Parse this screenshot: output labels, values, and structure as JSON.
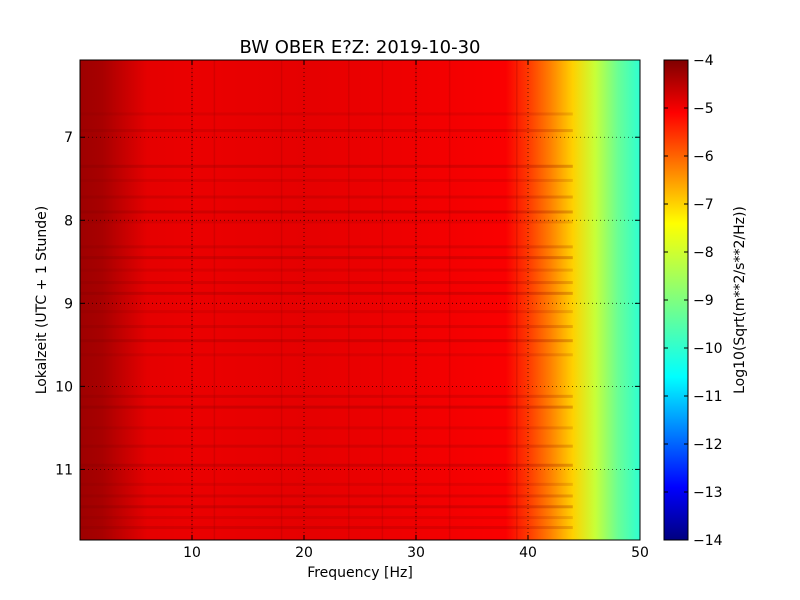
{
  "chart_data": {
    "type": "heatmap",
    "title": "BW OBER E?Z: 2019-10-30",
    "xlabel": "Frequency [Hz]",
    "ylabel": "Lokalzeit (UTC + 1 Stunde)",
    "xlim": [
      0,
      50
    ],
    "ylim": [
      11.85,
      6.07
    ],
    "x_ticks": [
      10,
      20,
      30,
      40,
      50
    ],
    "y_ticks": [
      7,
      8,
      9,
      10,
      11
    ],
    "grid": true,
    "colorbar": {
      "label": "Log10(Sqrt(m**2/s**2/Hz))",
      "range": [
        -14,
        -4
      ],
      "ticks": [
        -4,
        -5,
        -6,
        -7,
        -8,
        -9,
        -10,
        -11,
        -12,
        -13,
        -14
      ],
      "colormap": [
        "#00007f",
        "#0000ff",
        "#007fff",
        "#00ffff",
        "#7fff7f",
        "#ffff00",
        "#ff7f00",
        "#ff0000",
        "#7f0000"
      ]
    },
    "frequency_profile": {
      "frequency_hz": [
        0,
        2,
        4,
        6,
        10,
        20,
        30,
        38,
        40,
        42,
        44,
        46,
        48,
        50
      ],
      "log10_amplitude": [
        -4.3,
        -4.4,
        -4.7,
        -5.0,
        -5.05,
        -5.0,
        -5.1,
        -5.2,
        -5.8,
        -6.5,
        -7.3,
        -8.3,
        -9.2,
        -9.8
      ]
    },
    "dark_bands_time": [
      6.72,
      6.92,
      7.35,
      7.52,
      7.72,
      7.9,
      8.02,
      8.32,
      8.45,
      8.6,
      8.75,
      8.88,
      9.1,
      9.28,
      9.45,
      9.62,
      10.12,
      10.25,
      10.5,
      10.72,
      10.95,
      11.18,
      11.32,
      11.45,
      11.58,
      11.7
    ],
    "dark_lines_frequency_hz": [
      10,
      12,
      18,
      24,
      27,
      30,
      33,
      39
    ]
  }
}
